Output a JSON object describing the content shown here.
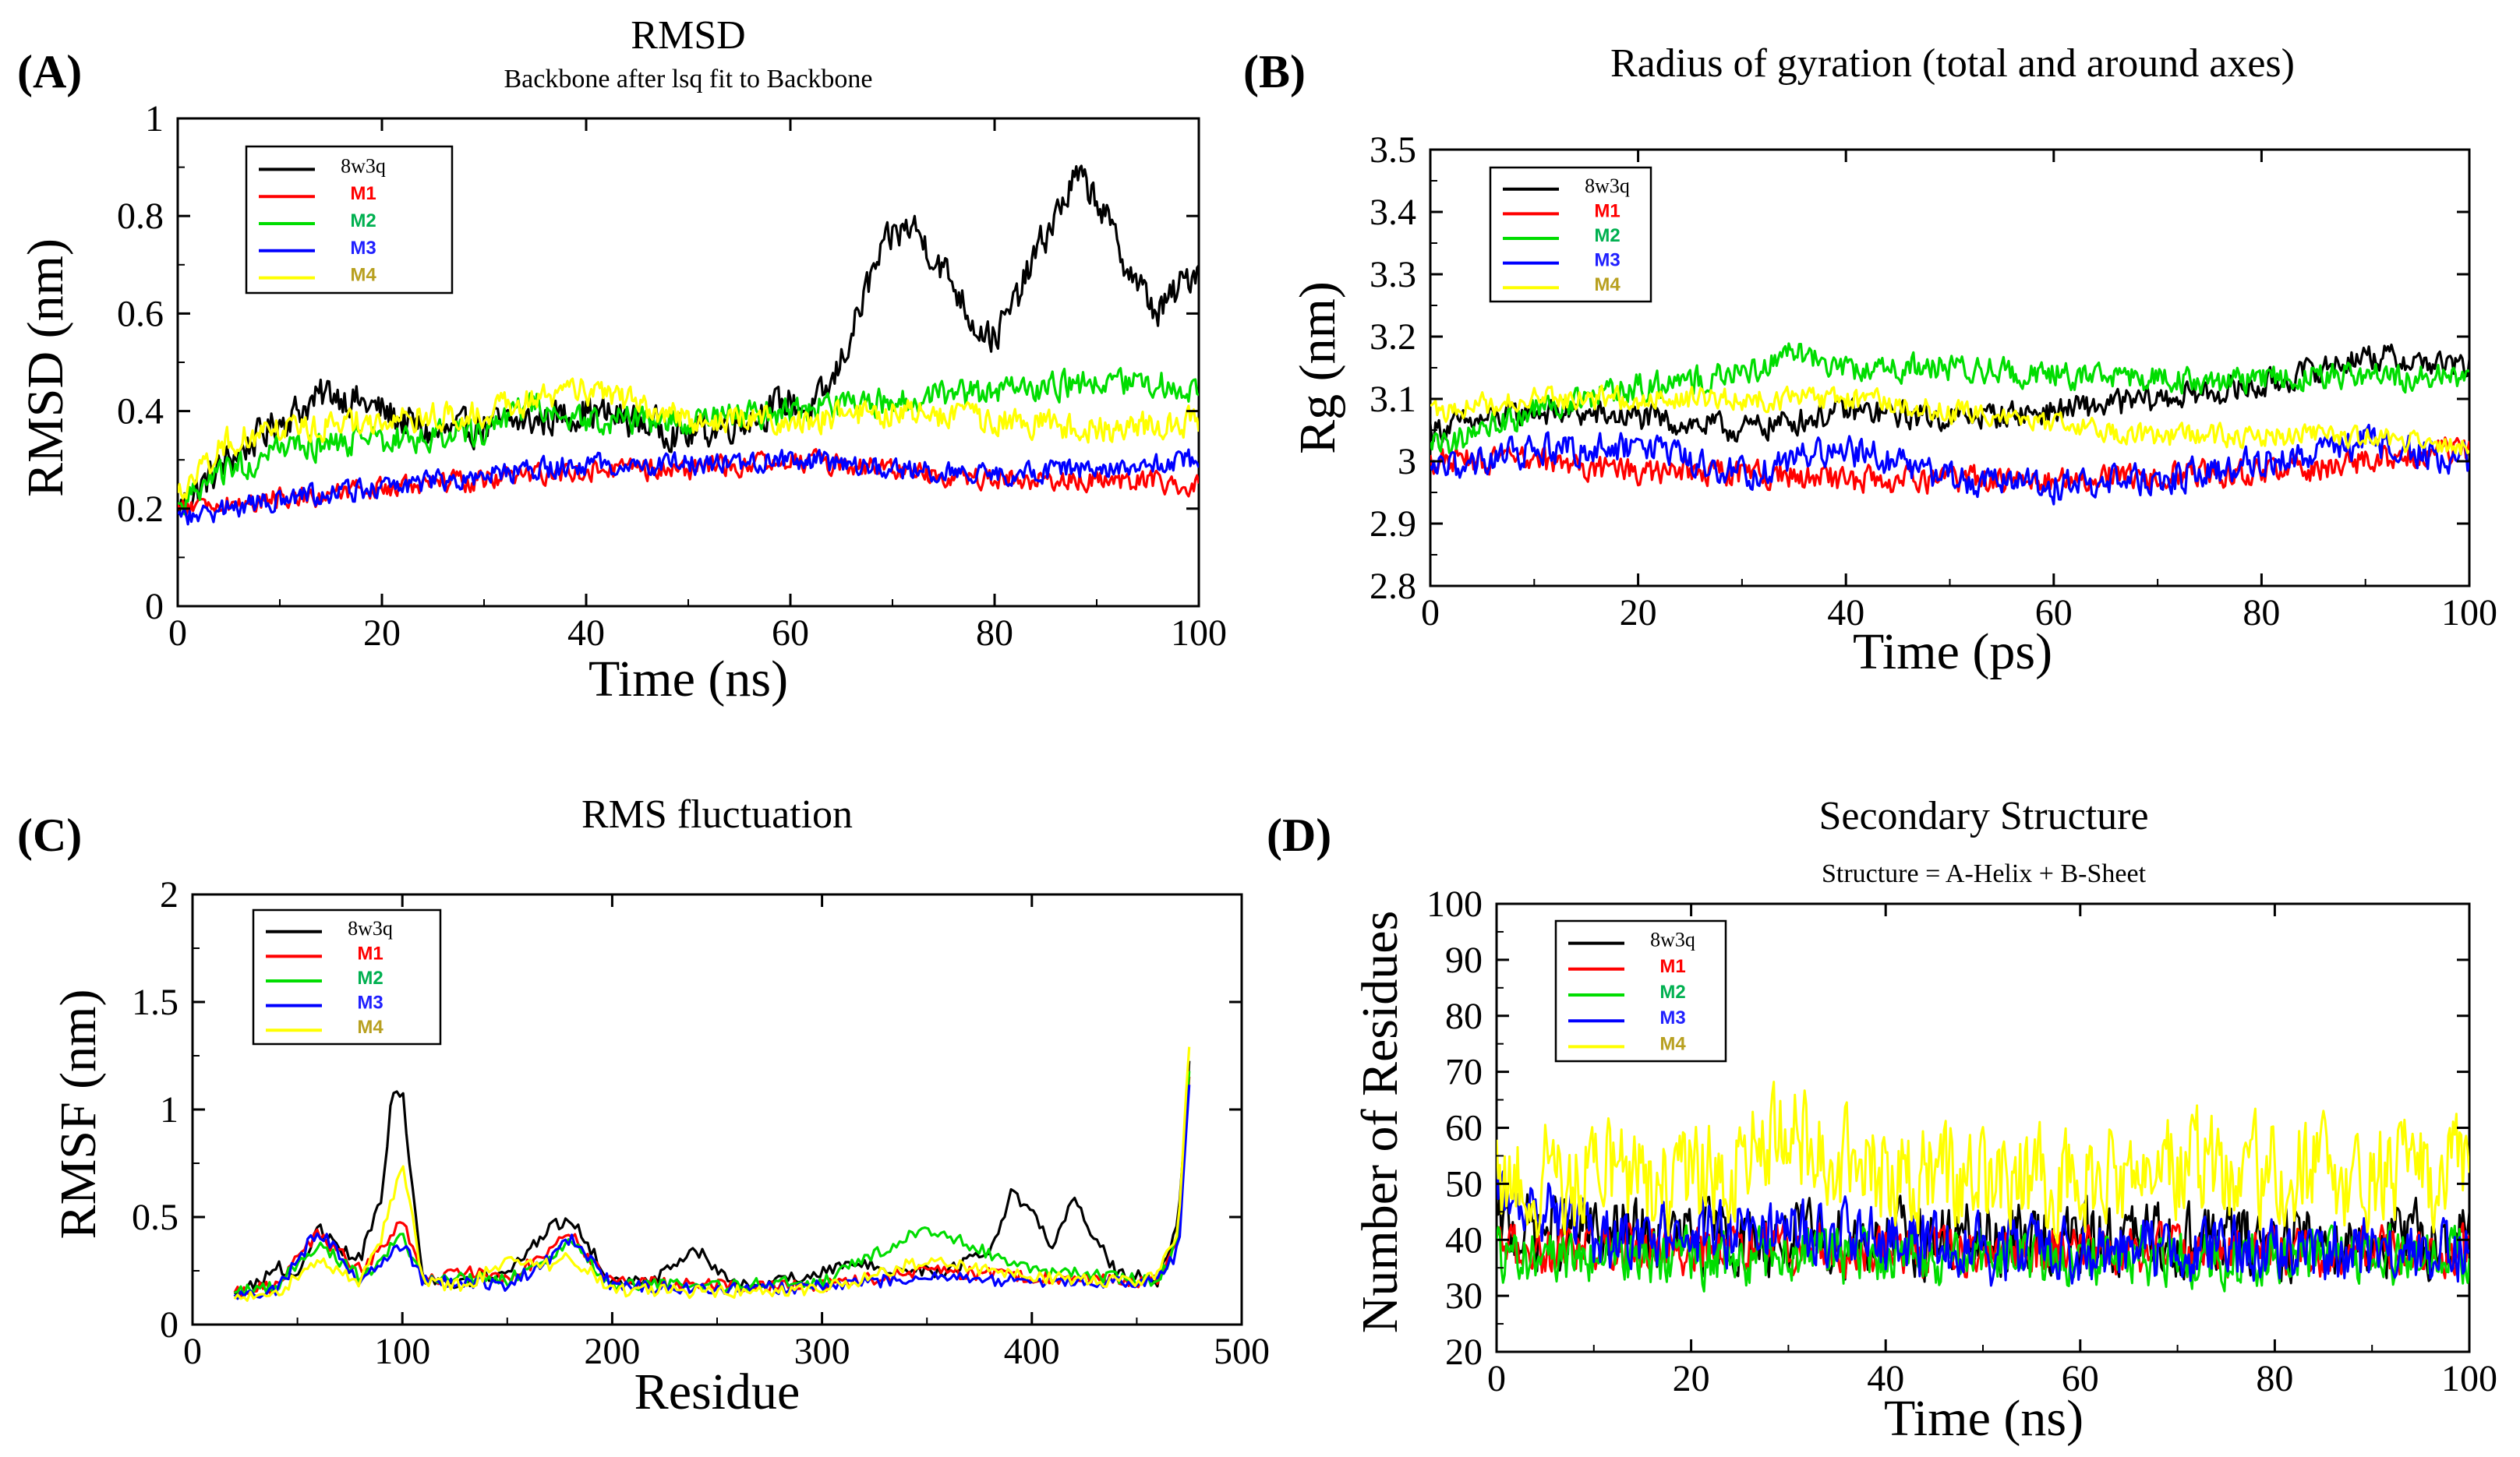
{
  "panels": {
    "A": {
      "label": "(A)"
    },
    "B": {
      "label": "(B)"
    },
    "C": {
      "label": "(C)"
    },
    "D": {
      "label": "(D)"
    }
  },
  "colors": {
    "8w3q": "#000000",
    "M1": "#ff0000",
    "M2": "#00dd00",
    "M3": "#0000ff",
    "M4": "#ffff00"
  },
  "legend_text_colors": {
    "8w3q": "#000000",
    "M1": "#ff0000",
    "M2": "#00b050",
    "M3": "#2020ff",
    "M4": "#b8a020"
  },
  "chart_data": [
    {
      "type": "line",
      "title": "RMSD",
      "subtitle": "Backbone after lsq fit to Backbone",
      "xlabel": "Time (ns)",
      "ylabel": "RMSD (nm)",
      "xlim": [
        0,
        100
      ],
      "ylim": [
        0,
        1
      ],
      "xticks": [
        0,
        20,
        40,
        60,
        80,
        100
      ],
      "yticks": [
        0,
        0.2,
        0.4,
        0.6,
        0.8,
        1
      ],
      "ytick_labels": [
        "0",
        "0.2",
        "0.4",
        "0.6",
        "0.8",
        "1"
      ],
      "legend": "top-left",
      "series": [
        {
          "name": "8w3q",
          "x": [
            0,
            5,
            10,
            15,
            20,
            25,
            30,
            35,
            40,
            45,
            50,
            55,
            60,
            62,
            64,
            66,
            68,
            70,
            72,
            74,
            76,
            78,
            80,
            82,
            84,
            86,
            88,
            90,
            92,
            94,
            96,
            98,
            100
          ],
          "y": [
            0.2,
            0.3,
            0.38,
            0.44,
            0.4,
            0.35,
            0.37,
            0.38,
            0.4,
            0.38,
            0.35,
            0.38,
            0.42,
            0.4,
            0.45,
            0.56,
            0.68,
            0.76,
            0.78,
            0.72,
            0.66,
            0.58,
            0.55,
            0.62,
            0.72,
            0.8,
            0.88,
            0.84,
            0.74,
            0.66,
            0.6,
            0.65,
            0.7
          ],
          "noise": 0.05
        },
        {
          "name": "M1",
          "x": [
            0,
            10,
            20,
            30,
            40,
            50,
            60,
            70,
            80,
            90,
            100
          ],
          "y": [
            0.2,
            0.22,
            0.24,
            0.26,
            0.28,
            0.28,
            0.3,
            0.28,
            0.26,
            0.26,
            0.25
          ],
          "noise": 0.03
        },
        {
          "name": "M2",
          "x": [
            0,
            5,
            10,
            20,
            30,
            35,
            40,
            50,
            60,
            70,
            80,
            90,
            100
          ],
          "y": [
            0.2,
            0.28,
            0.32,
            0.34,
            0.36,
            0.42,
            0.38,
            0.38,
            0.4,
            0.42,
            0.44,
            0.46,
            0.45
          ],
          "noise": 0.04
        },
        {
          "name": "M3",
          "x": [
            0,
            10,
            20,
            30,
            40,
            50,
            60,
            70,
            80,
            90,
            100
          ],
          "y": [
            0.18,
            0.22,
            0.24,
            0.27,
            0.29,
            0.29,
            0.3,
            0.28,
            0.27,
            0.28,
            0.3
          ],
          "noise": 0.03
        },
        {
          "name": "M4",
          "x": [
            0,
            5,
            10,
            20,
            30,
            40,
            50,
            60,
            70,
            80,
            90,
            100
          ],
          "y": [
            0.22,
            0.34,
            0.36,
            0.38,
            0.4,
            0.44,
            0.38,
            0.38,
            0.4,
            0.38,
            0.36,
            0.38
          ],
          "noise": 0.04
        }
      ]
    },
    {
      "type": "line",
      "title": "Radius of gyration (total and around axes)",
      "subtitle": "",
      "xlabel": "Time (ps)",
      "ylabel": "Rg (nm)",
      "xlim": [
        0,
        100
      ],
      "ylim": [
        2.8,
        3.5
      ],
      "xticks": [
        0,
        20,
        40,
        60,
        80,
        100
      ],
      "yticks": [
        2.8,
        2.9,
        3,
        3.1,
        3.2,
        3.3,
        3.4,
        3.5
      ],
      "ytick_labels": [
        "2.8",
        "2.9",
        "3",
        "3.1",
        "3.2",
        "3.3",
        "3.4",
        "3.5"
      ],
      "legend": "top-left",
      "series": [
        {
          "name": "8w3q",
          "x": [
            0,
            10,
            20,
            30,
            40,
            50,
            60,
            70,
            80,
            90,
            100
          ],
          "y": [
            3.05,
            3.08,
            3.07,
            3.05,
            3.08,
            3.07,
            3.08,
            3.1,
            3.12,
            3.17,
            3.15
          ],
          "noise": 0.03
        },
        {
          "name": "M1",
          "x": [
            0,
            10,
            20,
            30,
            40,
            50,
            60,
            70,
            80,
            90,
            100
          ],
          "y": [
            3.0,
            3.0,
            2.98,
            2.98,
            2.97,
            2.97,
            2.97,
            2.98,
            2.98,
            3.0,
            3.02
          ],
          "noise": 0.03
        },
        {
          "name": "M2",
          "x": [
            0,
            10,
            20,
            30,
            35,
            40,
            50,
            60,
            70,
            80,
            90,
            100
          ],
          "y": [
            3.02,
            3.08,
            3.12,
            3.14,
            3.18,
            3.15,
            3.15,
            3.14,
            3.13,
            3.13,
            3.14,
            3.13
          ],
          "noise": 0.03
        },
        {
          "name": "M3",
          "x": [
            0,
            10,
            20,
            30,
            40,
            50,
            60,
            70,
            80,
            90,
            100
          ],
          "y": [
            2.98,
            3.02,
            3.02,
            2.98,
            3.02,
            2.97,
            2.96,
            2.97,
            3.0,
            3.03,
            3.0
          ],
          "noise": 0.035
        },
        {
          "name": "M4",
          "x": [
            0,
            10,
            20,
            30,
            40,
            50,
            60,
            70,
            80,
            90,
            100
          ],
          "y": [
            3.08,
            3.1,
            3.1,
            3.1,
            3.1,
            3.08,
            3.06,
            3.04,
            3.04,
            3.04,
            3.02
          ],
          "noise": 0.025
        }
      ]
    },
    {
      "type": "line",
      "title": "RMS fluctuation",
      "subtitle": "",
      "xlabel": "Residue",
      "ylabel": "RMSF (nm)",
      "xlim": [
        0,
        500
      ],
      "ylim": [
        0,
        2
      ],
      "xticks": [
        0,
        100,
        200,
        300,
        400,
        500
      ],
      "yticks": [
        0,
        0.5,
        1,
        1.5,
        2
      ],
      "ytick_labels": [
        "0",
        "0.5",
        "1",
        "1.5",
        "2"
      ],
      "legend": "top-left",
      "series": [
        {
          "name": "8w3q",
          "x": [
            20,
            30,
            40,
            50,
            60,
            70,
            80,
            90,
            95,
            100,
            105,
            110,
            130,
            150,
            170,
            180,
            190,
            200,
            220,
            240,
            260,
            280,
            300,
            320,
            340,
            360,
            380,
            390,
            400,
            410,
            420,
            430,
            440,
            460,
            470,
            475
          ],
          "y": [
            0.15,
            0.18,
            0.28,
            0.2,
            0.45,
            0.35,
            0.3,
            0.6,
            1.05,
            1.1,
            0.6,
            0.2,
            0.2,
            0.25,
            0.45,
            0.5,
            0.35,
            0.2,
            0.2,
            0.35,
            0.18,
            0.2,
            0.25,
            0.28,
            0.25,
            0.25,
            0.35,
            0.6,
            0.55,
            0.35,
            0.6,
            0.4,
            0.25,
            0.2,
            0.5,
            1.2
          ]
        },
        {
          "name": "M1",
          "x": [
            20,
            40,
            60,
            80,
            90,
            100,
            110,
            130,
            150,
            170,
            180,
            200,
            250,
            300,
            350,
            400,
            440,
            460,
            470,
            475
          ],
          "y": [
            0.15,
            0.18,
            0.42,
            0.25,
            0.35,
            0.5,
            0.2,
            0.25,
            0.2,
            0.35,
            0.42,
            0.2,
            0.18,
            0.18,
            0.25,
            0.22,
            0.2,
            0.2,
            0.4,
            1.15
          ]
        },
        {
          "name": "M2",
          "x": [
            20,
            40,
            60,
            80,
            90,
            100,
            110,
            130,
            150,
            170,
            180,
            200,
            250,
            300,
            350,
            400,
            440,
            460,
            470,
            475
          ],
          "y": [
            0.15,
            0.18,
            0.38,
            0.22,
            0.3,
            0.42,
            0.2,
            0.22,
            0.2,
            0.32,
            0.38,
            0.18,
            0.18,
            0.2,
            0.45,
            0.25,
            0.22,
            0.2,
            0.4,
            1.2
          ]
        },
        {
          "name": "M3",
          "x": [
            20,
            40,
            60,
            80,
            90,
            100,
            110,
            130,
            150,
            170,
            180,
            200,
            250,
            300,
            350,
            400,
            440,
            460,
            470,
            475
          ],
          "y": [
            0.14,
            0.16,
            0.44,
            0.2,
            0.28,
            0.38,
            0.2,
            0.2,
            0.18,
            0.3,
            0.4,
            0.18,
            0.16,
            0.18,
            0.22,
            0.2,
            0.2,
            0.2,
            0.35,
            1.1
          ]
        },
        {
          "name": "M4",
          "x": [
            20,
            40,
            60,
            80,
            90,
            100,
            110,
            130,
            150,
            170,
            180,
            200,
            250,
            300,
            350,
            400,
            440,
            460,
            470,
            475
          ],
          "y": [
            0.12,
            0.14,
            0.3,
            0.2,
            0.4,
            0.75,
            0.2,
            0.18,
            0.3,
            0.28,
            0.32,
            0.16,
            0.15,
            0.16,
            0.3,
            0.22,
            0.2,
            0.22,
            0.45,
            1.3
          ]
        }
      ]
    },
    {
      "type": "line",
      "title": "Secondary Structure",
      "subtitle": "Structure = A-Helix + B-Sheet",
      "xlabel": "Time (ns)",
      "ylabel": "Number of Residues",
      "xlim": [
        0,
        100
      ],
      "ylim": [
        20,
        100
      ],
      "xticks": [
        0,
        20,
        40,
        60,
        80,
        100
      ],
      "yticks": [
        20,
        30,
        40,
        50,
        60,
        70,
        80,
        90,
        100
      ],
      "ytick_labels": [
        "20",
        "30",
        "40",
        "50",
        "60",
        "70",
        "80",
        "90",
        "100"
      ],
      "legend": "top-left",
      "series": [
        {
          "name": "8w3q",
          "x": [
            0,
            20,
            40,
            60,
            80,
            100
          ],
          "y": [
            42,
            40,
            40,
            40,
            40,
            40
          ],
          "noise": 9
        },
        {
          "name": "M1",
          "x": [
            0,
            20,
            40,
            60,
            80,
            100
          ],
          "y": [
            38,
            38,
            38,
            38,
            38,
            38
          ],
          "noise": 6
        },
        {
          "name": "M2",
          "x": [
            0,
            20,
            40,
            60,
            80,
            100
          ],
          "y": [
            37,
            37,
            37,
            37,
            37,
            37
          ],
          "noise": 7
        },
        {
          "name": "M3",
          "x": [
            0,
            10,
            30,
            50,
            80,
            100
          ],
          "y": [
            50,
            40,
            42,
            38,
            38,
            38
          ],
          "noise": 8
        },
        {
          "name": "M4",
          "x": [
            0,
            20,
            30,
            40,
            60,
            70,
            80,
            100
          ],
          "y": [
            52,
            50,
            58,
            52,
            50,
            54,
            52,
            52
          ],
          "noise": 13
        }
      ]
    }
  ]
}
